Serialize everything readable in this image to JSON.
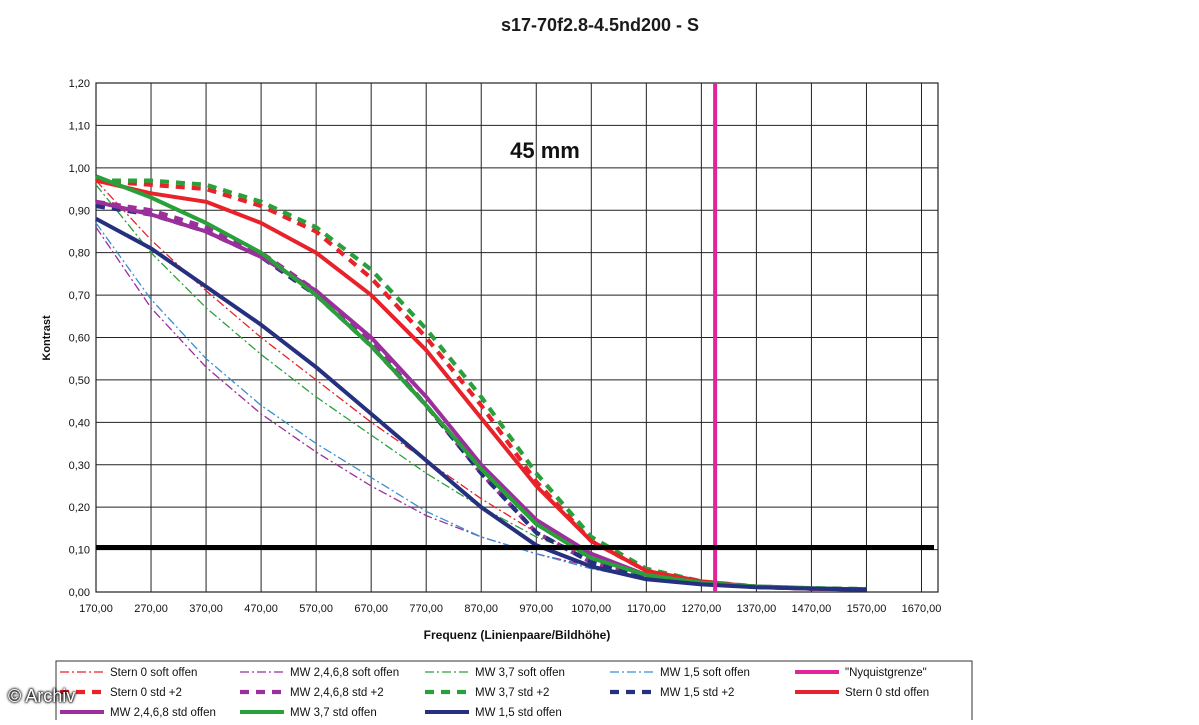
{
  "watermark": "© Archiv",
  "chart_data": {
    "type": "line",
    "title": "s17-70f2.8-4.5nd200 - S",
    "annotation": "45 mm",
    "xlabel": "Frequenz (Linienpaare/Bildhöhe)",
    "ylabel": "Kontrast",
    "xlim": [
      170,
      1700
    ],
    "ylim": [
      0,
      1.2
    ],
    "xticks": [
      "170,00",
      "270,00",
      "370,00",
      "470,00",
      "570,00",
      "670,00",
      "770,00",
      "870,00",
      "970,00",
      "1070,00",
      "1170,00",
      "1270,00",
      "1370,00",
      "1470,00",
      "1570,00",
      "1670,00"
    ],
    "yticks": [
      "0,00",
      "0,10",
      "0,20",
      "0,30",
      "0,40",
      "0,50",
      "0,60",
      "0,70",
      "0,80",
      "0,90",
      "1,00",
      "1,10",
      "1,20"
    ],
    "grid": true,
    "legend_position": "bottom",
    "reference_lines": [
      {
        "name": "\"Nyquistgrenze\"",
        "orientation": "vertical",
        "value": 1295,
        "color": "#e0249a"
      },
      {
        "orientation": "horizontal",
        "value": 0.105,
        "color": "#000000"
      }
    ],
    "series": [
      {
        "name": "Stern 0 soft offen",
        "color": "#e8222a",
        "style": "dashdot-thin",
        "x": [
          170,
          270,
          370,
          470,
          570,
          670,
          770,
          870,
          970,
          1070,
          1170,
          1270,
          1370,
          1470,
          1570
        ],
        "y": [
          0.97,
          0.83,
          0.71,
          0.6,
          0.5,
          0.4,
          0.31,
          0.22,
          0.14,
          0.08,
          0.04,
          0.02,
          0.012,
          0.008,
          0.006
        ]
      },
      {
        "name": "MW 2,4,6,8 soft offen",
        "color": "#9b2f9b",
        "style": "dashdot-thin",
        "x": [
          170,
          270,
          370,
          470,
          570,
          670,
          770,
          870,
          970,
          1070,
          1170,
          1270,
          1370,
          1470,
          1570
        ],
        "y": [
          0.86,
          0.67,
          0.53,
          0.42,
          0.33,
          0.25,
          0.18,
          0.13,
          0.09,
          0.06,
          0.035,
          0.02,
          0.012,
          0.008,
          0.006
        ]
      },
      {
        "name": "MW 3,7 soft offen",
        "color": "#2aa03a",
        "style": "dashdot-thin",
        "x": [
          170,
          270,
          370,
          470,
          570,
          670,
          770,
          870,
          970,
          1070,
          1170,
          1270,
          1370,
          1470,
          1570
        ],
        "y": [
          0.96,
          0.8,
          0.67,
          0.56,
          0.46,
          0.37,
          0.28,
          0.2,
          0.13,
          0.08,
          0.045,
          0.025,
          0.015,
          0.01,
          0.007
        ]
      },
      {
        "name": "MW 1,5 soft offen",
        "color": "#3a8ed0",
        "style": "dashdot-thin",
        "x": [
          170,
          270,
          370,
          470,
          570,
          670,
          770,
          870,
          970,
          1070,
          1170,
          1270,
          1370,
          1470,
          1570
        ],
        "y": [
          0.87,
          0.69,
          0.55,
          0.44,
          0.35,
          0.27,
          0.19,
          0.13,
          0.09,
          0.055,
          0.03,
          0.018,
          0.01,
          0.007,
          0.005
        ]
      },
      {
        "name": "\"Nyquistgrenze\"",
        "color": "#e0249a",
        "style": "solid-thick",
        "x": [],
        "y": []
      },
      {
        "name": "Stern 0 std +2",
        "color": "#e8222a",
        "style": "dash-thick",
        "x": [
          170,
          270,
          370,
          470,
          570,
          670,
          770,
          870,
          970,
          1070,
          1170,
          1270,
          1370,
          1470,
          1570
        ],
        "y": [
          0.97,
          0.96,
          0.95,
          0.91,
          0.85,
          0.74,
          0.6,
          0.44,
          0.26,
          0.12,
          0.05,
          0.025,
          0.012,
          0.008,
          0.006
        ]
      },
      {
        "name": "MW 2,4,6,8 std +2",
        "color": "#9b2f9b",
        "style": "dash-thick",
        "x": [
          170,
          270,
          370,
          470,
          570,
          670,
          770,
          870,
          970,
          1070,
          1170,
          1270,
          1370,
          1470,
          1570
        ],
        "y": [
          0.92,
          0.9,
          0.86,
          0.8,
          0.71,
          0.59,
          0.44,
          0.28,
          0.14,
          0.07,
          0.035,
          0.02,
          0.012,
          0.008,
          0.006
        ]
      },
      {
        "name": "MW 3,7 std +2",
        "color": "#2aa03a",
        "style": "dash-thick",
        "x": [
          170,
          270,
          370,
          470,
          570,
          670,
          770,
          870,
          970,
          1070,
          1170,
          1270,
          1370,
          1470,
          1570
        ],
        "y": [
          0.97,
          0.97,
          0.96,
          0.92,
          0.86,
          0.76,
          0.62,
          0.46,
          0.28,
          0.13,
          0.055,
          0.025,
          0.013,
          0.009,
          0.007
        ]
      },
      {
        "name": "MW 1,5 std +2",
        "color": "#25307f",
        "style": "dash-thick",
        "x": [
          170,
          270,
          370,
          470,
          570,
          670,
          770,
          870,
          970,
          1070,
          1170,
          1270,
          1370,
          1470,
          1570
        ],
        "y": [
          0.91,
          0.89,
          0.85,
          0.79,
          0.7,
          0.58,
          0.44,
          0.28,
          0.14,
          0.07,
          0.035,
          0.02,
          0.012,
          0.008,
          0.006
        ]
      },
      {
        "name": "Stern 0 std offen",
        "color": "#e8222a",
        "style": "solid-thick",
        "x": [
          170,
          270,
          370,
          470,
          570,
          670,
          770,
          870,
          970,
          1070,
          1170,
          1270,
          1370,
          1470,
          1570
        ],
        "y": [
          0.97,
          0.94,
          0.92,
          0.87,
          0.8,
          0.7,
          0.57,
          0.41,
          0.25,
          0.12,
          0.05,
          0.025,
          0.012,
          0.008,
          0.006
        ]
      },
      {
        "name": "MW 2,4,6,8 std offen",
        "color": "#9b2f9b",
        "style": "solid-thick",
        "x": [
          170,
          270,
          370,
          470,
          570,
          670,
          770,
          870,
          970,
          1070,
          1170,
          1270,
          1370,
          1470,
          1570
        ],
        "y": [
          0.92,
          0.89,
          0.85,
          0.79,
          0.71,
          0.6,
          0.46,
          0.3,
          0.17,
          0.09,
          0.04,
          0.022,
          0.013,
          0.009,
          0.006
        ]
      },
      {
        "name": "MW 3,7 std offen",
        "color": "#2aa03a",
        "style": "solid-thick",
        "x": [
          170,
          270,
          370,
          470,
          570,
          670,
          770,
          870,
          970,
          1070,
          1170,
          1270,
          1370,
          1470,
          1570
        ],
        "y": [
          0.98,
          0.93,
          0.87,
          0.8,
          0.7,
          0.58,
          0.44,
          0.29,
          0.16,
          0.08,
          0.04,
          0.022,
          0.013,
          0.009,
          0.006
        ]
      },
      {
        "name": "MW 1,5 std offen",
        "color": "#25307f",
        "style": "solid-thick",
        "x": [
          170,
          270,
          370,
          470,
          570,
          670,
          770,
          870,
          970,
          1070,
          1170,
          1270,
          1370,
          1470,
          1570
        ],
        "y": [
          0.88,
          0.81,
          0.72,
          0.63,
          0.53,
          0.42,
          0.31,
          0.2,
          0.11,
          0.06,
          0.03,
          0.018,
          0.011,
          0.008,
          0.006
        ]
      }
    ]
  }
}
